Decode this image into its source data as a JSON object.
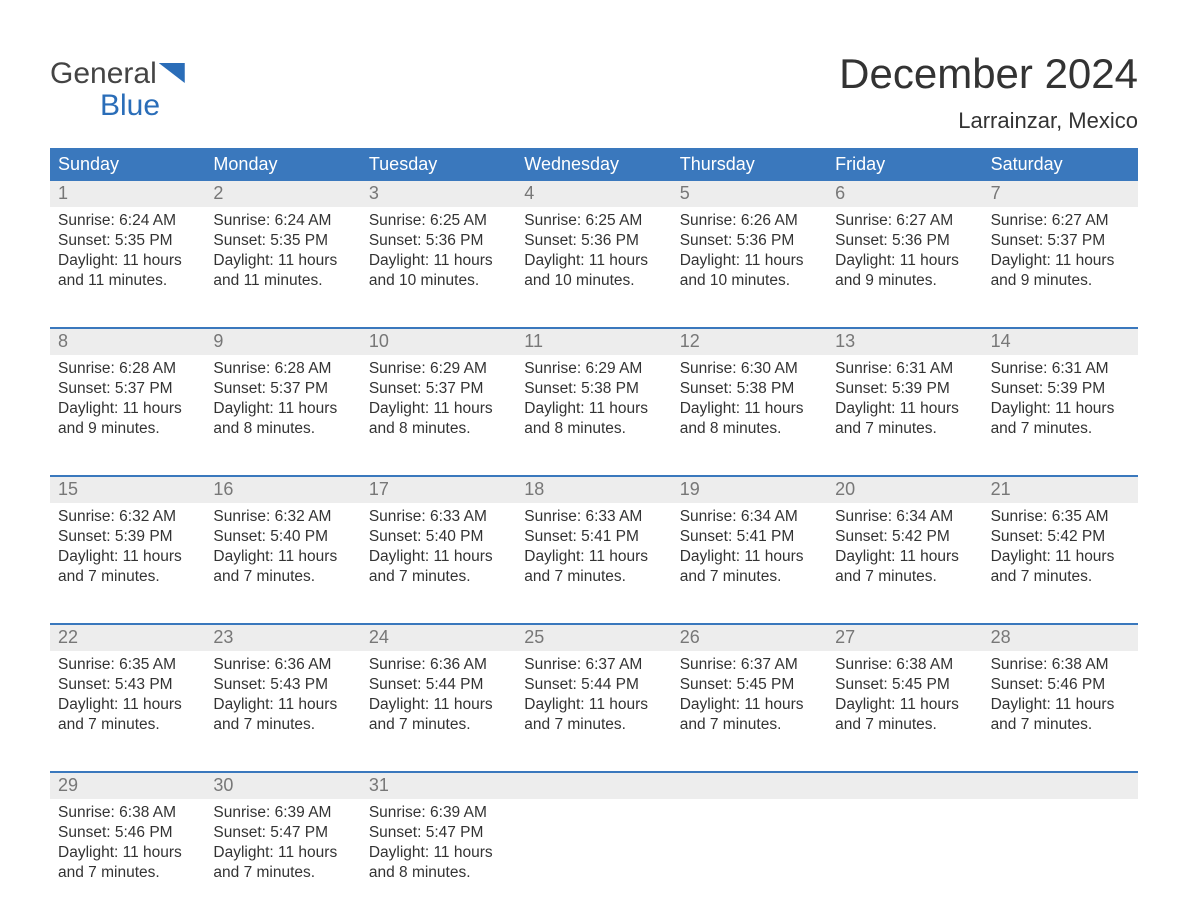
{
  "logo": {
    "line1": "General",
    "line2": "Blue"
  },
  "title": "December 2024",
  "location": "Larrainzar, Mexico",
  "colors": {
    "header_bg": "#3a78bd",
    "header_text": "#ffffff",
    "daynum_bg": "#ededed",
    "daynum_text": "#777777",
    "body_text": "#333333",
    "accent": "#2a6db8"
  },
  "days_of_week": [
    "Sunday",
    "Monday",
    "Tuesday",
    "Wednesday",
    "Thursday",
    "Friday",
    "Saturday"
  ],
  "weeks": [
    [
      {
        "n": "1",
        "sr": "Sunrise: 6:24 AM",
        "ss": "Sunset: 5:35 PM",
        "d1": "Daylight: 11 hours",
        "d2": "and 11 minutes."
      },
      {
        "n": "2",
        "sr": "Sunrise: 6:24 AM",
        "ss": "Sunset: 5:35 PM",
        "d1": "Daylight: 11 hours",
        "d2": "and 11 minutes."
      },
      {
        "n": "3",
        "sr": "Sunrise: 6:25 AM",
        "ss": "Sunset: 5:36 PM",
        "d1": "Daylight: 11 hours",
        "d2": "and 10 minutes."
      },
      {
        "n": "4",
        "sr": "Sunrise: 6:25 AM",
        "ss": "Sunset: 5:36 PM",
        "d1": "Daylight: 11 hours",
        "d2": "and 10 minutes."
      },
      {
        "n": "5",
        "sr": "Sunrise: 6:26 AM",
        "ss": "Sunset: 5:36 PM",
        "d1": "Daylight: 11 hours",
        "d2": "and 10 minutes."
      },
      {
        "n": "6",
        "sr": "Sunrise: 6:27 AM",
        "ss": "Sunset: 5:36 PM",
        "d1": "Daylight: 11 hours",
        "d2": "and 9 minutes."
      },
      {
        "n": "7",
        "sr": "Sunrise: 6:27 AM",
        "ss": "Sunset: 5:37 PM",
        "d1": "Daylight: 11 hours",
        "d2": "and 9 minutes."
      }
    ],
    [
      {
        "n": "8",
        "sr": "Sunrise: 6:28 AM",
        "ss": "Sunset: 5:37 PM",
        "d1": "Daylight: 11 hours",
        "d2": "and 9 minutes."
      },
      {
        "n": "9",
        "sr": "Sunrise: 6:28 AM",
        "ss": "Sunset: 5:37 PM",
        "d1": "Daylight: 11 hours",
        "d2": "and 8 minutes."
      },
      {
        "n": "10",
        "sr": "Sunrise: 6:29 AM",
        "ss": "Sunset: 5:37 PM",
        "d1": "Daylight: 11 hours",
        "d2": "and 8 minutes."
      },
      {
        "n": "11",
        "sr": "Sunrise: 6:29 AM",
        "ss": "Sunset: 5:38 PM",
        "d1": "Daylight: 11 hours",
        "d2": "and 8 minutes."
      },
      {
        "n": "12",
        "sr": "Sunrise: 6:30 AM",
        "ss": "Sunset: 5:38 PM",
        "d1": "Daylight: 11 hours",
        "d2": "and 8 minutes."
      },
      {
        "n": "13",
        "sr": "Sunrise: 6:31 AM",
        "ss": "Sunset: 5:39 PM",
        "d1": "Daylight: 11 hours",
        "d2": "and 7 minutes."
      },
      {
        "n": "14",
        "sr": "Sunrise: 6:31 AM",
        "ss": "Sunset: 5:39 PM",
        "d1": "Daylight: 11 hours",
        "d2": "and 7 minutes."
      }
    ],
    [
      {
        "n": "15",
        "sr": "Sunrise: 6:32 AM",
        "ss": "Sunset: 5:39 PM",
        "d1": "Daylight: 11 hours",
        "d2": "and 7 minutes."
      },
      {
        "n": "16",
        "sr": "Sunrise: 6:32 AM",
        "ss": "Sunset: 5:40 PM",
        "d1": "Daylight: 11 hours",
        "d2": "and 7 minutes."
      },
      {
        "n": "17",
        "sr": "Sunrise: 6:33 AM",
        "ss": "Sunset: 5:40 PM",
        "d1": "Daylight: 11 hours",
        "d2": "and 7 minutes."
      },
      {
        "n": "18",
        "sr": "Sunrise: 6:33 AM",
        "ss": "Sunset: 5:41 PM",
        "d1": "Daylight: 11 hours",
        "d2": "and 7 minutes."
      },
      {
        "n": "19",
        "sr": "Sunrise: 6:34 AM",
        "ss": "Sunset: 5:41 PM",
        "d1": "Daylight: 11 hours",
        "d2": "and 7 minutes."
      },
      {
        "n": "20",
        "sr": "Sunrise: 6:34 AM",
        "ss": "Sunset: 5:42 PM",
        "d1": "Daylight: 11 hours",
        "d2": "and 7 minutes."
      },
      {
        "n": "21",
        "sr": "Sunrise: 6:35 AM",
        "ss": "Sunset: 5:42 PM",
        "d1": "Daylight: 11 hours",
        "d2": "and 7 minutes."
      }
    ],
    [
      {
        "n": "22",
        "sr": "Sunrise: 6:35 AM",
        "ss": "Sunset: 5:43 PM",
        "d1": "Daylight: 11 hours",
        "d2": "and 7 minutes."
      },
      {
        "n": "23",
        "sr": "Sunrise: 6:36 AM",
        "ss": "Sunset: 5:43 PM",
        "d1": "Daylight: 11 hours",
        "d2": "and 7 minutes."
      },
      {
        "n": "24",
        "sr": "Sunrise: 6:36 AM",
        "ss": "Sunset: 5:44 PM",
        "d1": "Daylight: 11 hours",
        "d2": "and 7 minutes."
      },
      {
        "n": "25",
        "sr": "Sunrise: 6:37 AM",
        "ss": "Sunset: 5:44 PM",
        "d1": "Daylight: 11 hours",
        "d2": "and 7 minutes."
      },
      {
        "n": "26",
        "sr": "Sunrise: 6:37 AM",
        "ss": "Sunset: 5:45 PM",
        "d1": "Daylight: 11 hours",
        "d2": "and 7 minutes."
      },
      {
        "n": "27",
        "sr": "Sunrise: 6:38 AM",
        "ss": "Sunset: 5:45 PM",
        "d1": "Daylight: 11 hours",
        "d2": "and 7 minutes."
      },
      {
        "n": "28",
        "sr": "Sunrise: 6:38 AM",
        "ss": "Sunset: 5:46 PM",
        "d1": "Daylight: 11 hours",
        "d2": "and 7 minutes."
      }
    ],
    [
      {
        "n": "29",
        "sr": "Sunrise: 6:38 AM",
        "ss": "Sunset: 5:46 PM",
        "d1": "Daylight: 11 hours",
        "d2": "and 7 minutes."
      },
      {
        "n": "30",
        "sr": "Sunrise: 6:39 AM",
        "ss": "Sunset: 5:47 PM",
        "d1": "Daylight: 11 hours",
        "d2": "and 7 minutes."
      },
      {
        "n": "31",
        "sr": "Sunrise: 6:39 AM",
        "ss": "Sunset: 5:47 PM",
        "d1": "Daylight: 11 hours",
        "d2": "and 8 minutes."
      },
      null,
      null,
      null,
      null
    ]
  ]
}
